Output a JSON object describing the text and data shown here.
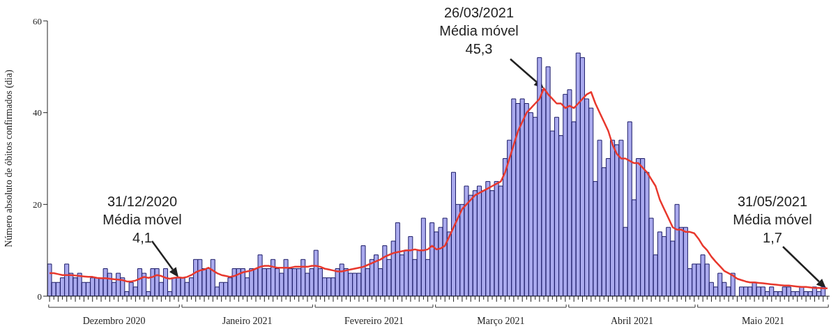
{
  "chart_data": {
    "type": "bar",
    "ylabel": "Número absoluto de óbitos confirmados (dia)",
    "x": [
      "2020-12-01",
      "2020-12-02",
      "2020-12-03",
      "2020-12-04",
      "2020-12-05",
      "2020-12-06",
      "2020-12-07",
      "2020-12-08",
      "2020-12-09",
      "2020-12-10",
      "2020-12-11",
      "2020-12-12",
      "2020-12-13",
      "2020-12-14",
      "2020-12-15",
      "2020-12-16",
      "2020-12-17",
      "2020-12-18",
      "2020-12-19",
      "2020-12-20",
      "2020-12-21",
      "2020-12-22",
      "2020-12-23",
      "2020-12-24",
      "2020-12-25",
      "2020-12-26",
      "2020-12-27",
      "2020-12-28",
      "2020-12-29",
      "2020-12-30",
      "2020-12-31",
      "2021-01-01",
      "2021-01-02",
      "2021-01-03",
      "2021-01-04",
      "2021-01-05",
      "2021-01-06",
      "2021-01-07",
      "2021-01-08",
      "2021-01-09",
      "2021-01-10",
      "2021-01-11",
      "2021-01-12",
      "2021-01-13",
      "2021-01-14",
      "2021-01-15",
      "2021-01-16",
      "2021-01-17",
      "2021-01-18",
      "2021-01-19",
      "2021-01-20",
      "2021-01-21",
      "2021-01-22",
      "2021-01-23",
      "2021-01-24",
      "2021-01-25",
      "2021-01-26",
      "2021-01-27",
      "2021-01-28",
      "2021-01-29",
      "2021-01-30",
      "2021-01-31",
      "2021-02-01",
      "2021-02-02",
      "2021-02-03",
      "2021-02-04",
      "2021-02-05",
      "2021-02-06",
      "2021-02-07",
      "2021-02-08",
      "2021-02-09",
      "2021-02-10",
      "2021-02-11",
      "2021-02-12",
      "2021-02-13",
      "2021-02-14",
      "2021-02-15",
      "2021-02-16",
      "2021-02-17",
      "2021-02-18",
      "2021-02-19",
      "2021-02-20",
      "2021-02-21",
      "2021-02-22",
      "2021-02-23",
      "2021-02-24",
      "2021-02-25",
      "2021-02-26",
      "2021-02-27",
      "2021-02-28",
      "2021-03-01",
      "2021-03-02",
      "2021-03-03",
      "2021-03-04",
      "2021-03-05",
      "2021-03-06",
      "2021-03-07",
      "2021-03-08",
      "2021-03-09",
      "2021-03-10",
      "2021-03-11",
      "2021-03-12",
      "2021-03-13",
      "2021-03-14",
      "2021-03-15",
      "2021-03-16",
      "2021-03-17",
      "2021-03-18",
      "2021-03-19",
      "2021-03-20",
      "2021-03-21",
      "2021-03-22",
      "2021-03-23",
      "2021-03-24",
      "2021-03-25",
      "2021-03-26",
      "2021-03-27",
      "2021-03-28",
      "2021-03-29",
      "2021-03-30",
      "2021-03-31",
      "2021-04-01",
      "2021-04-02",
      "2021-04-03",
      "2021-04-04",
      "2021-04-05",
      "2021-04-06",
      "2021-04-07",
      "2021-04-08",
      "2021-04-09",
      "2021-04-10",
      "2021-04-11",
      "2021-04-12",
      "2021-04-13",
      "2021-04-14",
      "2021-04-15",
      "2021-04-16",
      "2021-04-17",
      "2021-04-18",
      "2021-04-19",
      "2021-04-20",
      "2021-04-21",
      "2021-04-22",
      "2021-04-23",
      "2021-04-24",
      "2021-04-25",
      "2021-04-26",
      "2021-04-27",
      "2021-04-28",
      "2021-04-29",
      "2021-04-30",
      "2021-05-01",
      "2021-05-02",
      "2021-05-03",
      "2021-05-04",
      "2021-05-05",
      "2021-05-06",
      "2021-05-07",
      "2021-05-08",
      "2021-05-09",
      "2021-05-10",
      "2021-05-11",
      "2021-05-12",
      "2021-05-13",
      "2021-05-14",
      "2021-05-15",
      "2021-05-16",
      "2021-05-17",
      "2021-05-18",
      "2021-05-19",
      "2021-05-20",
      "2021-05-21",
      "2021-05-22",
      "2021-05-23",
      "2021-05-24",
      "2021-05-25",
      "2021-05-26",
      "2021-05-27",
      "2021-05-28",
      "2021-05-29",
      "2021-05-30",
      "2021-05-31"
    ],
    "xlim": [
      "2020-11-30T12:00",
      "2021-05-31T12:00"
    ],
    "xticks": [
      {
        "value": "2020-12-16",
        "label": "Dezembro 2020"
      },
      {
        "value": "2021-01-16",
        "label": "Janeiro 2021"
      },
      {
        "value": "2021-02-14T12:00",
        "label": "Fevereiro 2021"
      },
      {
        "value": "2021-03-16",
        "label": "Março 2021"
      },
      {
        "value": "2021-04-15T12:00",
        "label": "Abril 2021"
      },
      {
        "value": "2021-05-16",
        "label": "Maio 2021"
      }
    ],
    "ylim": [
      0,
      60
    ],
    "yticks": [
      0,
      20,
      40,
      60
    ],
    "series": [
      {
        "color": "#aaaaee",
        "values": [
          7,
          3,
          3,
          4,
          7,
          5,
          4,
          5,
          3,
          3,
          4,
          4,
          4,
          6,
          5,
          3,
          5,
          4,
          1,
          3,
          2,
          6,
          5,
          1,
          6,
          6,
          3,
          6,
          1,
          4,
          4,
          4,
          3,
          4,
          8,
          8,
          6,
          6,
          8,
          2,
          3,
          3,
          4,
          6,
          6,
          6,
          4,
          6,
          6,
          9,
          6,
          6,
          8,
          6,
          5,
          8,
          6,
          6,
          6,
          8,
          5,
          6,
          10,
          6,
          4,
          4,
          4,
          6,
          7,
          6,
          5,
          5,
          5,
          11,
          6,
          8,
          9,
          6,
          11,
          8,
          12,
          16,
          9,
          10,
          13,
          8,
          10,
          17,
          8,
          16,
          14,
          15,
          17,
          14,
          27,
          20,
          20,
          24,
          22,
          23,
          24,
          23,
          25,
          23,
          25,
          24,
          30,
          34,
          43,
          42,
          43,
          42,
          40,
          39,
          52,
          45,
          50,
          36,
          39,
          35,
          44,
          45,
          38,
          53,
          52,
          43,
          41,
          25,
          34,
          28,
          30,
          34,
          33,
          34,
          15,
          38,
          21,
          30,
          30,
          27,
          17,
          9,
          14,
          13,
          15,
          12,
          20,
          15,
          15,
          6,
          7,
          7,
          9,
          7,
          3,
          2,
          5,
          3,
          2,
          5,
          0,
          2,
          2,
          2,
          3,
          2,
          2,
          1,
          2,
          1,
          1,
          2,
          2,
          1,
          1,
          2,
          1,
          1,
          2,
          1,
          2,
          0
        ]
      },
      {
        "type": "line",
        "color": "#e8382d",
        "values": [
          5,
          5,
          4.8,
          4.6,
          4.6,
          4.6,
          4.5,
          4.4,
          4.3,
          4.2,
          4.2,
          4,
          3.9,
          3.9,
          3.8,
          3.7,
          3.6,
          3.5,
          3.2,
          3.2,
          3.4,
          3.8,
          4.2,
          4,
          4.2,
          4.6,
          4.4,
          4,
          3.8,
          4,
          4.1,
          4,
          4.2,
          4.6,
          5.2,
          5.6,
          5.8,
          6.2,
          5.6,
          5,
          4.6,
          4.4,
          4.2,
          4.4,
          4.8,
          5.2,
          5.4,
          5.6,
          6,
          6.4,
          6.6,
          6.6,
          6.4,
          6.2,
          6.2,
          6.2,
          6.2,
          6.4,
          6.4,
          6.4,
          6.4,
          6.6,
          6.6,
          6.4,
          6,
          5.8,
          5.6,
          5.4,
          5.4,
          5.6,
          5.8,
          6,
          6.2,
          6.4,
          6.8,
          7.2,
          7.6,
          8,
          8.6,
          9,
          9.4,
          9.6,
          9.8,
          10,
          10,
          10.2,
          10,
          10,
          10.2,
          11,
          10.2,
          10.4,
          11,
          13,
          15,
          17,
          19,
          20,
          21,
          22,
          22.5,
          23,
          23.5,
          24,
          24.5,
          25,
          27,
          30,
          33,
          36,
          38,
          40,
          41,
          42,
          43,
          45.3,
          44,
          43,
          42,
          42,
          41,
          41.5,
          41,
          42,
          43,
          44,
          44.5,
          42,
          40,
          38,
          36,
          33,
          31,
          30,
          30,
          29.5,
          29,
          29,
          28,
          27,
          25.5,
          24,
          21,
          19,
          17,
          15,
          14.5,
          14.5,
          14,
          14,
          13.7,
          12.5,
          11,
          10,
          8.6,
          7.5,
          6.5,
          5.5,
          5,
          4.5,
          3.8,
          3.5,
          3.2,
          3,
          3,
          2.9,
          2.8,
          2.7,
          2.6,
          2.5,
          2.4,
          2.3,
          2.3,
          2.2,
          2.1,
          2,
          2,
          1.9,
          1.8,
          1.8,
          1.7,
          1.7
        ]
      }
    ],
    "marker": "none",
    "line_style": "solid",
    "annotations": [
      {
        "text": "31/12/2020\nMédia móvel\n4,1",
        "x": "2020-12-31",
        "y": 4.1
      },
      {
        "text": "26/03/2021\nMédia móvel\n45,3",
        "x": "2021-03-26",
        "y": 45.3
      },
      "31/05/2021\nMédia móvel\n1,7"
    ]
  }
}
